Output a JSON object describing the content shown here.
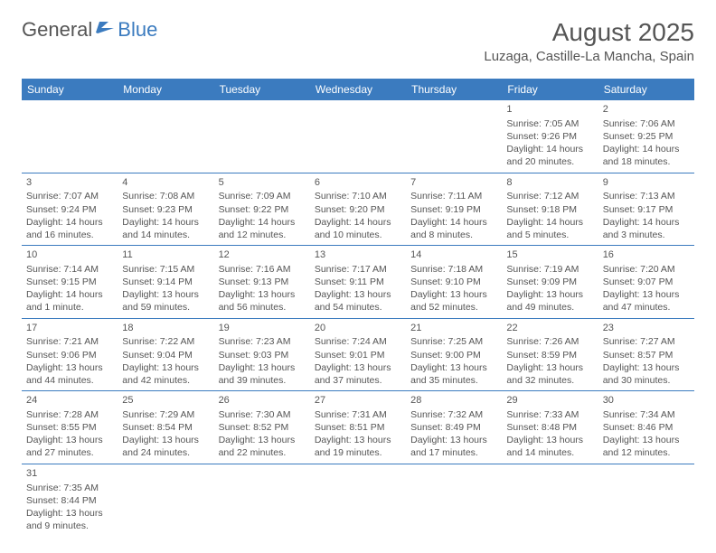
{
  "header": {
    "logo_general": "General",
    "logo_blue": "Blue",
    "month_title": "August 2025",
    "location": "Luzaga, Castille-La Mancha, Spain"
  },
  "colors": {
    "header_bg": "#3b7bbf",
    "header_text": "#ffffff",
    "body_text": "#555555",
    "row_border": "#3b7bbf",
    "background": "#ffffff"
  },
  "weekdays": [
    "Sunday",
    "Monday",
    "Tuesday",
    "Wednesday",
    "Thursday",
    "Friday",
    "Saturday"
  ],
  "weeks": [
    [
      null,
      null,
      null,
      null,
      null,
      {
        "d": "1",
        "sr": "Sunrise: 7:05 AM",
        "ss": "Sunset: 9:26 PM",
        "dl1": "Daylight: 14 hours",
        "dl2": "and 20 minutes."
      },
      {
        "d": "2",
        "sr": "Sunrise: 7:06 AM",
        "ss": "Sunset: 9:25 PM",
        "dl1": "Daylight: 14 hours",
        "dl2": "and 18 minutes."
      }
    ],
    [
      {
        "d": "3",
        "sr": "Sunrise: 7:07 AM",
        "ss": "Sunset: 9:24 PM",
        "dl1": "Daylight: 14 hours",
        "dl2": "and 16 minutes."
      },
      {
        "d": "4",
        "sr": "Sunrise: 7:08 AM",
        "ss": "Sunset: 9:23 PM",
        "dl1": "Daylight: 14 hours",
        "dl2": "and 14 minutes."
      },
      {
        "d": "5",
        "sr": "Sunrise: 7:09 AM",
        "ss": "Sunset: 9:22 PM",
        "dl1": "Daylight: 14 hours",
        "dl2": "and 12 minutes."
      },
      {
        "d": "6",
        "sr": "Sunrise: 7:10 AM",
        "ss": "Sunset: 9:20 PM",
        "dl1": "Daylight: 14 hours",
        "dl2": "and 10 minutes."
      },
      {
        "d": "7",
        "sr": "Sunrise: 7:11 AM",
        "ss": "Sunset: 9:19 PM",
        "dl1": "Daylight: 14 hours",
        "dl2": "and 8 minutes."
      },
      {
        "d": "8",
        "sr": "Sunrise: 7:12 AM",
        "ss": "Sunset: 9:18 PM",
        "dl1": "Daylight: 14 hours",
        "dl2": "and 5 minutes."
      },
      {
        "d": "9",
        "sr": "Sunrise: 7:13 AM",
        "ss": "Sunset: 9:17 PM",
        "dl1": "Daylight: 14 hours",
        "dl2": "and 3 minutes."
      }
    ],
    [
      {
        "d": "10",
        "sr": "Sunrise: 7:14 AM",
        "ss": "Sunset: 9:15 PM",
        "dl1": "Daylight: 14 hours",
        "dl2": "and 1 minute."
      },
      {
        "d": "11",
        "sr": "Sunrise: 7:15 AM",
        "ss": "Sunset: 9:14 PM",
        "dl1": "Daylight: 13 hours",
        "dl2": "and 59 minutes."
      },
      {
        "d": "12",
        "sr": "Sunrise: 7:16 AM",
        "ss": "Sunset: 9:13 PM",
        "dl1": "Daylight: 13 hours",
        "dl2": "and 56 minutes."
      },
      {
        "d": "13",
        "sr": "Sunrise: 7:17 AM",
        "ss": "Sunset: 9:11 PM",
        "dl1": "Daylight: 13 hours",
        "dl2": "and 54 minutes."
      },
      {
        "d": "14",
        "sr": "Sunrise: 7:18 AM",
        "ss": "Sunset: 9:10 PM",
        "dl1": "Daylight: 13 hours",
        "dl2": "and 52 minutes."
      },
      {
        "d": "15",
        "sr": "Sunrise: 7:19 AM",
        "ss": "Sunset: 9:09 PM",
        "dl1": "Daylight: 13 hours",
        "dl2": "and 49 minutes."
      },
      {
        "d": "16",
        "sr": "Sunrise: 7:20 AM",
        "ss": "Sunset: 9:07 PM",
        "dl1": "Daylight: 13 hours",
        "dl2": "and 47 minutes."
      }
    ],
    [
      {
        "d": "17",
        "sr": "Sunrise: 7:21 AM",
        "ss": "Sunset: 9:06 PM",
        "dl1": "Daylight: 13 hours",
        "dl2": "and 44 minutes."
      },
      {
        "d": "18",
        "sr": "Sunrise: 7:22 AM",
        "ss": "Sunset: 9:04 PM",
        "dl1": "Daylight: 13 hours",
        "dl2": "and 42 minutes."
      },
      {
        "d": "19",
        "sr": "Sunrise: 7:23 AM",
        "ss": "Sunset: 9:03 PM",
        "dl1": "Daylight: 13 hours",
        "dl2": "and 39 minutes."
      },
      {
        "d": "20",
        "sr": "Sunrise: 7:24 AM",
        "ss": "Sunset: 9:01 PM",
        "dl1": "Daylight: 13 hours",
        "dl2": "and 37 minutes."
      },
      {
        "d": "21",
        "sr": "Sunrise: 7:25 AM",
        "ss": "Sunset: 9:00 PM",
        "dl1": "Daylight: 13 hours",
        "dl2": "and 35 minutes."
      },
      {
        "d": "22",
        "sr": "Sunrise: 7:26 AM",
        "ss": "Sunset: 8:59 PM",
        "dl1": "Daylight: 13 hours",
        "dl2": "and 32 minutes."
      },
      {
        "d": "23",
        "sr": "Sunrise: 7:27 AM",
        "ss": "Sunset: 8:57 PM",
        "dl1": "Daylight: 13 hours",
        "dl2": "and 30 minutes."
      }
    ],
    [
      {
        "d": "24",
        "sr": "Sunrise: 7:28 AM",
        "ss": "Sunset: 8:55 PM",
        "dl1": "Daylight: 13 hours",
        "dl2": "and 27 minutes."
      },
      {
        "d": "25",
        "sr": "Sunrise: 7:29 AM",
        "ss": "Sunset: 8:54 PM",
        "dl1": "Daylight: 13 hours",
        "dl2": "and 24 minutes."
      },
      {
        "d": "26",
        "sr": "Sunrise: 7:30 AM",
        "ss": "Sunset: 8:52 PM",
        "dl1": "Daylight: 13 hours",
        "dl2": "and 22 minutes."
      },
      {
        "d": "27",
        "sr": "Sunrise: 7:31 AM",
        "ss": "Sunset: 8:51 PM",
        "dl1": "Daylight: 13 hours",
        "dl2": "and 19 minutes."
      },
      {
        "d": "28",
        "sr": "Sunrise: 7:32 AM",
        "ss": "Sunset: 8:49 PM",
        "dl1": "Daylight: 13 hours",
        "dl2": "and 17 minutes."
      },
      {
        "d": "29",
        "sr": "Sunrise: 7:33 AM",
        "ss": "Sunset: 8:48 PM",
        "dl1": "Daylight: 13 hours",
        "dl2": "and 14 minutes."
      },
      {
        "d": "30",
        "sr": "Sunrise: 7:34 AM",
        "ss": "Sunset: 8:46 PM",
        "dl1": "Daylight: 13 hours",
        "dl2": "and 12 minutes."
      }
    ],
    [
      {
        "d": "31",
        "sr": "Sunrise: 7:35 AM",
        "ss": "Sunset: 8:44 PM",
        "dl1": "Daylight: 13 hours",
        "dl2": "and 9 minutes."
      },
      null,
      null,
      null,
      null,
      null,
      null
    ]
  ]
}
